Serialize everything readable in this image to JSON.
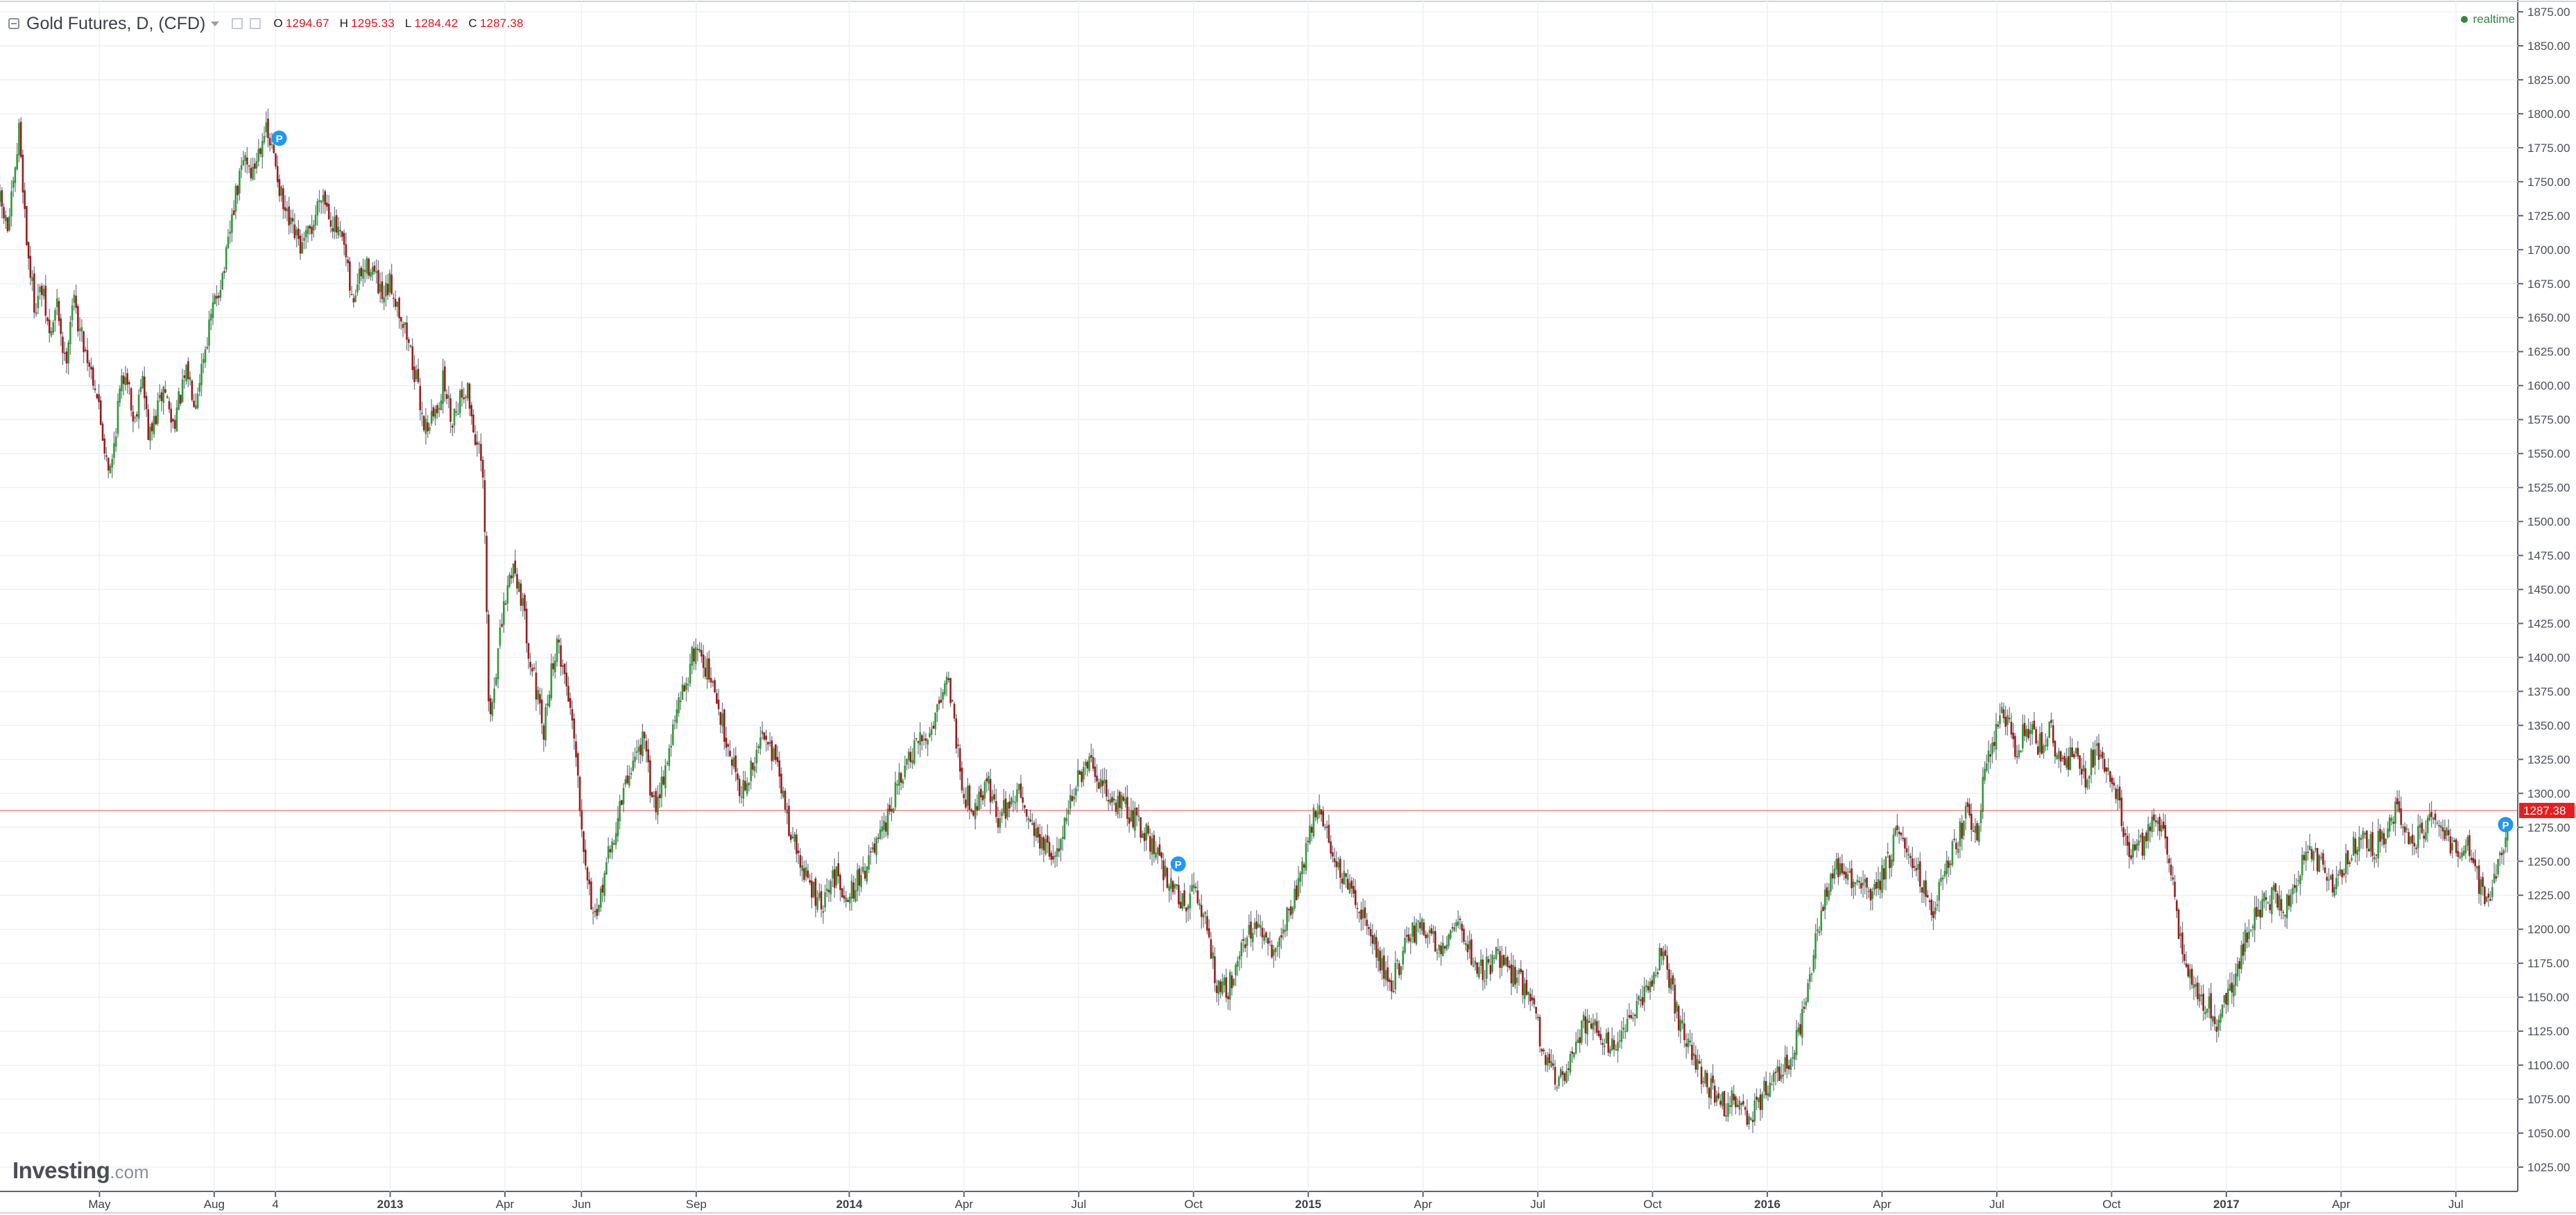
{
  "legend": {
    "symbol": "Gold Futures, D, (CFD)",
    "o_label": "O",
    "o": "1294.67",
    "h_label": "H",
    "h": "1295.33",
    "l_label": "L",
    "l": "1284.42",
    "c_label": "C",
    "c": "1287.38"
  },
  "status": "realtime",
  "logo": {
    "brand": "Investing",
    "domain": ".com"
  },
  "colors": {
    "up": "#2f9b38",
    "down": "#9b1c1c",
    "price_line": "#e03030",
    "price_tag": "#e81e1e",
    "grid": "#eef0f3",
    "marker": "#2196f3"
  },
  "chart_data": {
    "type": "candlestick",
    "interval": "D",
    "ylim": [
      1000,
      1880
    ],
    "y_ticks": [
      "1875.00",
      "1850.00",
      "1825.00",
      "1800.00",
      "1775.00",
      "1750.00",
      "1725.00",
      "1700.00",
      "1675.00",
      "1650.00",
      "1625.00",
      "1600.00",
      "1575.00",
      "1550.00",
      "1525.00",
      "1500.00",
      "1475.00",
      "1450.00",
      "1425.00",
      "1400.00",
      "1375.00",
      "1350.00",
      "1325.00",
      "1300.00",
      "1275.00",
      "1250.00",
      "1225.00",
      "1200.00",
      "1175.00",
      "1150.00",
      "1125.00",
      "1100.00",
      "1075.00",
      "1050.00",
      "1025.00"
    ],
    "x_ticks": [
      {
        "label": "May",
        "t": 0.4,
        "bold": false
      },
      {
        "label": "Aug",
        "t": 3.4,
        "bold": false
      },
      {
        "label": "4",
        "t": 5.0,
        "bold": false
      },
      {
        "label": "2013",
        "t": 8.0,
        "bold": true
      },
      {
        "label": "Apr",
        "t": 11.0,
        "bold": false
      },
      {
        "label": "Jun",
        "t": 13.0,
        "bold": false
      },
      {
        "label": "Sep",
        "t": 16.0,
        "bold": false
      },
      {
        "label": "2014",
        "t": 20.0,
        "bold": true
      },
      {
        "label": "Apr",
        "t": 23.0,
        "bold": false
      },
      {
        "label": "Jul",
        "t": 26.0,
        "bold": false
      },
      {
        "label": "Oct",
        "t": 29.0,
        "bold": false
      },
      {
        "label": "2015",
        "t": 32.0,
        "bold": true
      },
      {
        "label": "Apr",
        "t": 35.0,
        "bold": false
      },
      {
        "label": "Jul",
        "t": 38.0,
        "bold": false
      },
      {
        "label": "Oct",
        "t": 41.0,
        "bold": false
      },
      {
        "label": "2016",
        "t": 44.0,
        "bold": true
      },
      {
        "label": "Apr",
        "t": 47.0,
        "bold": false
      },
      {
        "label": "Jul",
        "t": 50.0,
        "bold": false
      },
      {
        "label": "Oct",
        "t": 53.0,
        "bold": false
      },
      {
        "label": "2017",
        "t": 56.0,
        "bold": true
      },
      {
        "label": "Apr",
        "t": 59.0,
        "bold": false
      },
      {
        "label": "Jul",
        "t": 62.0,
        "bold": false
      }
    ],
    "t_range": [
      -2.2,
      63.4
    ],
    "close_path": [
      [
        -2.2,
        1735
      ],
      [
        -2.0,
        1715
      ],
      [
        -1.8,
        1755
      ],
      [
        -1.7,
        1790
      ],
      [
        -1.5,
        1705
      ],
      [
        -1.3,
        1660
      ],
      [
        -1.1,
        1670
      ],
      [
        -0.9,
        1635
      ],
      [
        -0.7,
        1660
      ],
      [
        -0.5,
        1615
      ],
      [
        -0.3,
        1665
      ],
      [
        -0.1,
        1640
      ],
      [
        0.3,
        1600
      ],
      [
        0.5,
        1560
      ],
      [
        0.7,
        1535
      ],
      [
        0.9,
        1590
      ],
      [
        1.1,
        1615
      ],
      [
        1.3,
        1570
      ],
      [
        1.5,
        1610
      ],
      [
        1.7,
        1560
      ],
      [
        1.9,
        1580
      ],
      [
        2.1,
        1600
      ],
      [
        2.3,
        1570
      ],
      [
        2.5,
        1590
      ],
      [
        2.7,
        1610
      ],
      [
        2.9,
        1590
      ],
      [
        3.1,
        1620
      ],
      [
        3.4,
        1660
      ],
      [
        3.7,
        1690
      ],
      [
        3.9,
        1730
      ],
      [
        4.2,
        1770
      ],
      [
        4.4,
        1755
      ],
      [
        4.7,
        1790
      ],
      [
        5.0,
        1765
      ],
      [
        5.2,
        1730
      ],
      [
        5.4,
        1715
      ],
      [
        5.7,
        1700
      ],
      [
        6.0,
        1720
      ],
      [
        6.2,
        1745
      ],
      [
        6.5,
        1720
      ],
      [
        6.8,
        1700
      ],
      [
        7.0,
        1660
      ],
      [
        7.2,
        1680
      ],
      [
        7.5,
        1690
      ],
      [
        7.8,
        1660
      ],
      [
        8.0,
        1675
      ],
      [
        8.2,
        1660
      ],
      [
        8.5,
        1630
      ],
      [
        8.7,
        1600
      ],
      [
        8.9,
        1570
      ],
      [
        9.2,
        1580
      ],
      [
        9.4,
        1605
      ],
      [
        9.6,
        1575
      ],
      [
        9.8,
        1590
      ],
      [
        10.0,
        1600
      ],
      [
        10.2,
        1565
      ],
      [
        10.4,
        1540
      ],
      [
        10.5,
        1470
      ],
      [
        10.55,
        1380
      ],
      [
        10.6,
        1350
      ],
      [
        10.8,
        1400
      ],
      [
        11.0,
        1440
      ],
      [
        11.2,
        1470
      ],
      [
        11.4,
        1450
      ],
      [
        11.6,
        1410
      ],
      [
        11.8,
        1380
      ],
      [
        12.0,
        1340
      ],
      [
        12.2,
        1390
      ],
      [
        12.4,
        1410
      ],
      [
        12.6,
        1380
      ],
      [
        12.8,
        1350
      ],
      [
        13.0,
        1280
      ],
      [
        13.2,
        1230
      ],
      [
        13.4,
        1200
      ],
      [
        13.6,
        1245
      ],
      [
        13.8,
        1260
      ],
      [
        14.0,
        1290
      ],
      [
        14.3,
        1320
      ],
      [
        14.6,
        1340
      ],
      [
        14.9,
        1290
      ],
      [
        15.2,
        1320
      ],
      [
        15.5,
        1360
      ],
      [
        15.8,
        1390
      ],
      [
        16.0,
        1410
      ],
      [
        16.3,
        1390
      ],
      [
        16.6,
        1360
      ],
      [
        16.9,
        1330
      ],
      [
        17.2,
        1300
      ],
      [
        17.5,
        1320
      ],
      [
        17.8,
        1350
      ],
      [
        18.1,
        1320
      ],
      [
        18.4,
        1280
      ],
      [
        18.7,
        1250
      ],
      [
        19.0,
        1230
      ],
      [
        19.3,
        1215
      ],
      [
        19.6,
        1240
      ],
      [
        20.0,
        1225
      ],
      [
        20.3,
        1240
      ],
      [
        20.6,
        1255
      ],
      [
        20.9,
        1270
      ],
      [
        21.2,
        1300
      ],
      [
        21.5,
        1320
      ],
      [
        21.8,
        1335
      ],
      [
        22.1,
        1345
      ],
      [
        22.4,
        1375
      ],
      [
        22.6,
        1385
      ],
      [
        22.8,
        1340
      ],
      [
        23.0,
        1300
      ],
      [
        23.3,
        1290
      ],
      [
        23.6,
        1310
      ],
      [
        23.9,
        1280
      ],
      [
        24.2,
        1295
      ],
      [
        24.5,
        1300
      ],
      [
        24.8,
        1275
      ],
      [
        25.1,
        1260
      ],
      [
        25.4,
        1250
      ],
      [
        25.7,
        1290
      ],
      [
        26.0,
        1310
      ],
      [
        26.3,
        1320
      ],
      [
        26.6,
        1305
      ],
      [
        26.9,
        1295
      ],
      [
        27.2,
        1290
      ],
      [
        27.5,
        1280
      ],
      [
        27.8,
        1270
      ],
      [
        28.1,
        1250
      ],
      [
        28.4,
        1235
      ],
      [
        28.7,
        1220
      ],
      [
        29.0,
        1225
      ],
      [
        29.3,
        1210
      ],
      [
        29.6,
        1160
      ],
      [
        29.9,
        1155
      ],
      [
        30.2,
        1185
      ],
      [
        30.5,
        1200
      ],
      [
        30.8,
        1195
      ],
      [
        31.1,
        1180
      ],
      [
        31.4,
        1205
      ],
      [
        31.7,
        1230
      ],
      [
        32.0,
        1265
      ],
      [
        32.2,
        1290
      ],
      [
        32.4,
        1280
      ],
      [
        32.7,
        1250
      ],
      [
        33.0,
        1230
      ],
      [
        33.3,
        1220
      ],
      [
        33.6,
        1200
      ],
      [
        33.9,
        1175
      ],
      [
        34.2,
        1160
      ],
      [
        34.5,
        1185
      ],
      [
        34.8,
        1200
      ],
      [
        35.1,
        1200
      ],
      [
        35.4,
        1185
      ],
      [
        35.7,
        1200
      ],
      [
        36.0,
        1205
      ],
      [
        36.3,
        1175
      ],
      [
        36.6,
        1170
      ],
      [
        36.9,
        1180
      ],
      [
        37.2,
        1170
      ],
      [
        37.5,
        1165
      ],
      [
        37.8,
        1150
      ],
      [
        38.0,
        1130
      ],
      [
        38.2,
        1100
      ],
      [
        38.5,
        1090
      ],
      [
        38.8,
        1100
      ],
      [
        39.1,
        1125
      ],
      [
        39.4,
        1135
      ],
      [
        39.7,
        1120
      ],
      [
        40.0,
        1115
      ],
      [
        40.3,
        1125
      ],
      [
        40.6,
        1140
      ],
      [
        40.9,
        1160
      ],
      [
        41.2,
        1180
      ],
      [
        41.4,
        1170
      ],
      [
        41.7,
        1130
      ],
      [
        42.0,
        1110
      ],
      [
        42.3,
        1090
      ],
      [
        42.6,
        1080
      ],
      [
        42.9,
        1070
      ],
      [
        43.2,
        1075
      ],
      [
        43.5,
        1060
      ],
      [
        43.8,
        1075
      ],
      [
        44.0,
        1085
      ],
      [
        44.2,
        1090
      ],
      [
        44.5,
        1100
      ],
      [
        44.8,
        1120
      ],
      [
        45.1,
        1160
      ],
      [
        45.3,
        1200
      ],
      [
        45.6,
        1230
      ],
      [
        45.9,
        1250
      ],
      [
        46.2,
        1235
      ],
      [
        46.5,
        1230
      ],
      [
        46.8,
        1225
      ],
      [
        47.1,
        1245
      ],
      [
        47.4,
        1270
      ],
      [
        47.7,
        1260
      ],
      [
        48.0,
        1240
      ],
      [
        48.3,
        1210
      ],
      [
        48.6,
        1240
      ],
      [
        48.9,
        1260
      ],
      [
        49.2,
        1285
      ],
      [
        49.5,
        1270
      ],
      [
        49.7,
        1320
      ],
      [
        50.0,
        1345
      ],
      [
        50.2,
        1360
      ],
      [
        50.5,
        1330
      ],
      [
        50.8,
        1350
      ],
      [
        51.1,
        1335
      ],
      [
        51.4,
        1345
      ],
      [
        51.7,
        1320
      ],
      [
        52.0,
        1330
      ],
      [
        52.3,
        1310
      ],
      [
        52.6,
        1335
      ],
      [
        52.9,
        1320
      ],
      [
        53.2,
        1295
      ],
      [
        53.4,
        1260
      ],
      [
        53.6,
        1255
      ],
      [
        53.9,
        1265
      ],
      [
        54.2,
        1285
      ],
      [
        54.4,
        1270
      ],
      [
        54.6,
        1230
      ],
      [
        54.8,
        1190
      ],
      [
        55.0,
        1170
      ],
      [
        55.3,
        1150
      ],
      [
        55.6,
        1140
      ],
      [
        55.8,
        1130
      ],
      [
        56.0,
        1150
      ],
      [
        56.3,
        1175
      ],
      [
        56.6,
        1200
      ],
      [
        56.9,
        1215
      ],
      [
        57.2,
        1225
      ],
      [
        57.5,
        1215
      ],
      [
        57.8,
        1235
      ],
      [
        58.1,
        1255
      ],
      [
        58.4,
        1250
      ],
      [
        58.7,
        1230
      ],
      [
        59.0,
        1245
      ],
      [
        59.3,
        1260
      ],
      [
        59.6,
        1270
      ],
      [
        59.9,
        1260
      ],
      [
        60.2,
        1275
      ],
      [
        60.5,
        1290
      ],
      [
        60.8,
        1260
      ],
      [
        61.1,
        1270
      ],
      [
        61.4,
        1285
      ],
      [
        61.7,
        1270
      ],
      [
        62.0,
        1255
      ],
      [
        62.3,
        1260
      ],
      [
        62.6,
        1235
      ],
      [
        62.9,
        1220
      ],
      [
        63.1,
        1245
      ],
      [
        63.4,
        1287.38
      ]
    ],
    "last_price": "1287.38",
    "last_price_value": 1287.38,
    "markers": [
      {
        "label": "P",
        "t": 5.1,
        "price": 1782
      },
      {
        "label": "P",
        "t": 28.6,
        "price": 1248
      },
      {
        "label": "P",
        "t": 63.3,
        "price": 1277
      }
    ]
  }
}
